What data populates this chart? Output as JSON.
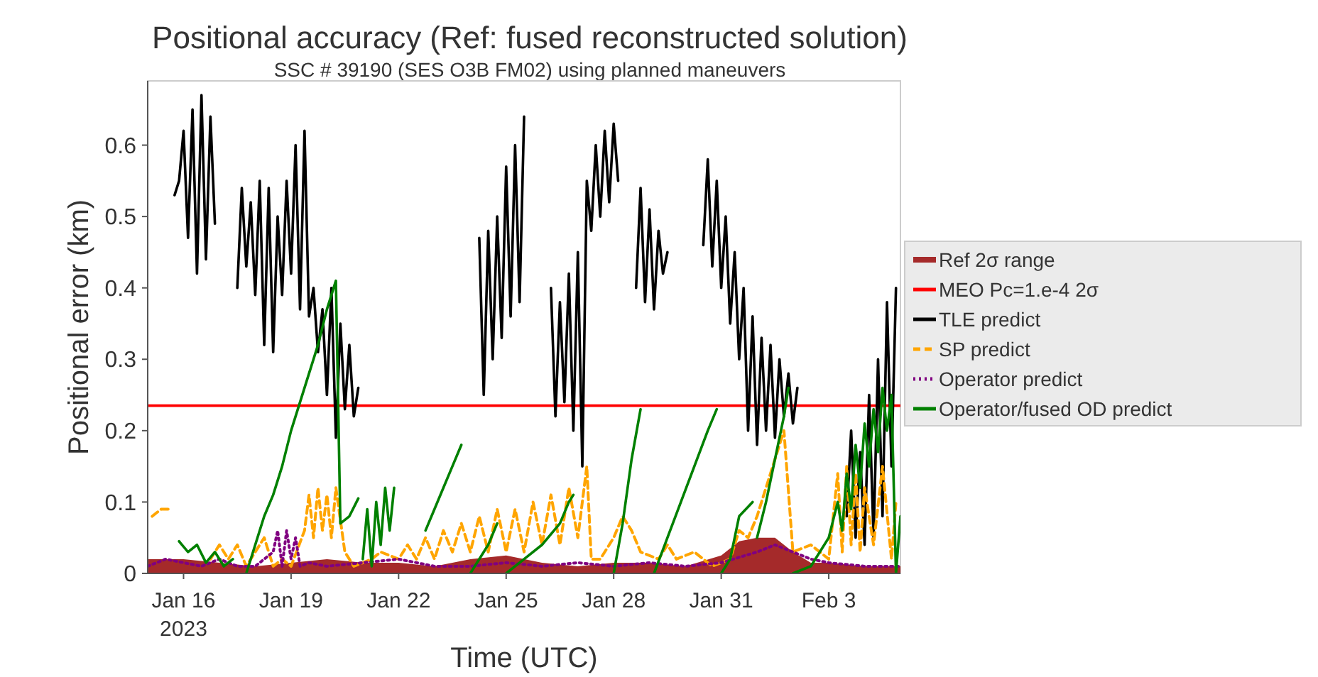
{
  "chart_data": {
    "type": "line",
    "title": "Positional accuracy (Ref: fused reconstructed solution)",
    "subtitle": "SSC # 39190 (SES O3B FM02) using planned maneuvers",
    "xlabel": "Time (UTC)",
    "ylabel": "Positional error (km)",
    "xlim": [
      "2023-01-15",
      "2023-02-05"
    ],
    "xticks": [
      {
        "value": "2023-01-16",
        "label": "Jan 16\n2023"
      },
      {
        "value": "2023-01-19",
        "label": "Jan 19"
      },
      {
        "value": "2023-01-22",
        "label": "Jan 22"
      },
      {
        "value": "2023-01-25",
        "label": "Jan 25"
      },
      {
        "value": "2023-01-28",
        "label": "Jan 28"
      },
      {
        "value": "2023-01-31",
        "label": "Jan 31"
      },
      {
        "value": "2023-02-03",
        "label": "Feb 3"
      }
    ],
    "ylim": [
      0,
      0.69
    ],
    "yticks": [
      0,
      0.1,
      0.2,
      0.3,
      0.4,
      0.5,
      0.6
    ],
    "grid": false,
    "legend": "right",
    "series": [
      {
        "name": "Ref 2σ range",
        "type": "area",
        "color": "#a52a2a",
        "x": [
          "2023-01-15T00:00",
          "2023-01-16T00:00",
          "2023-01-17T00:00",
          "2023-01-18T00:00",
          "2023-01-19T00:00",
          "2023-01-20T00:00",
          "2023-01-21T00:00",
          "2023-01-22T00:00",
          "2023-01-23T00:00",
          "2023-01-24T00:00",
          "2023-01-25T00:00",
          "2023-01-26T00:00",
          "2023-01-27T00:00",
          "2023-01-28T00:00",
          "2023-01-29T00:00",
          "2023-01-30T00:00",
          "2023-01-31T00:00",
          "2023-01-31T12:00",
          "2023-02-01T00:00",
          "2023-02-01T12:00",
          "2023-02-02T00:00",
          "2023-02-02T12:00",
          "2023-02-03T00:00",
          "2023-02-04T00:00",
          "2023-02-05T00:00"
        ],
        "values": [
          0.02,
          0.02,
          0.015,
          0.01,
          0.015,
          0.02,
          0.015,
          0.015,
          0.01,
          0.02,
          0.025,
          0.015,
          0.01,
          0.015,
          0.015,
          0.01,
          0.025,
          0.045,
          0.05,
          0.05,
          0.03,
          0.015,
          0.015,
          0.01,
          0.01
        ]
      },
      {
        "name": "MEO Pc=1.e-4 2σ",
        "color": "#ff0000",
        "x": [
          "2023-01-15T00:00",
          "2023-02-05T00:00"
        ],
        "values": [
          0.235,
          0.235
        ]
      },
      {
        "name": "TLE predict",
        "color": "#000000",
        "x": [
          "2023-01-15T18:00",
          "2023-01-15T21:00",
          "2023-01-16T00:00",
          "2023-01-16T03:00",
          "2023-01-16T06:00",
          "2023-01-16T09:00",
          "2023-01-16T12:00",
          "2023-01-16T15:00",
          "2023-01-16T18:00",
          "2023-01-16T21:00",
          "2023-01-17T03:00",
          "2023-01-17T12:00",
          "2023-01-17T15:00",
          "2023-01-17T18:00",
          "2023-01-17T21:00",
          "2023-01-18T00:00",
          "2023-01-18T03:00",
          "2023-01-18T06:00",
          "2023-01-18T09:00",
          "2023-01-18T12:00",
          "2023-01-18T15:00",
          "2023-01-18T18:00",
          "2023-01-18T21:00",
          "2023-01-19T00:00",
          "2023-01-19T03:00",
          "2023-01-19T06:00",
          "2023-01-19T09:00",
          "2023-01-19T12:00",
          "2023-01-19T15:00",
          "2023-01-19T18:00",
          "2023-01-19T21:00",
          "2023-01-20T00:00",
          "2023-01-20T03:00",
          "2023-01-20T06:00",
          "2023-01-20T09:00",
          "2023-01-20T12:00",
          "2023-01-20T15:00",
          "2023-01-20T18:00",
          "2023-01-20T21:00",
          "2023-01-21T06:00",
          "2023-01-24T06:00",
          "2023-01-24T09:00",
          "2023-01-24T12:00",
          "2023-01-24T15:00",
          "2023-01-24T18:00",
          "2023-01-24T21:00",
          "2023-01-25T00:00",
          "2023-01-25T03:00",
          "2023-01-25T06:00",
          "2023-01-25T09:00",
          "2023-01-25T12:00",
          "2023-01-25T21:00",
          "2023-01-26T06:00",
          "2023-01-26T09:00",
          "2023-01-26T12:00",
          "2023-01-26T15:00",
          "2023-01-26T18:00",
          "2023-01-26T21:00",
          "2023-01-27T00:00",
          "2023-01-27T03:00",
          "2023-01-27T06:00",
          "2023-01-27T09:00",
          "2023-01-27T12:00",
          "2023-01-27T15:00",
          "2023-01-27T18:00",
          "2023-01-27T21:00",
          "2023-01-28T00:00",
          "2023-01-28T03:00",
          "2023-01-28T09:00",
          "2023-01-28T15:00",
          "2023-01-28T18:00",
          "2023-01-28T21:00",
          "2023-01-29T00:00",
          "2023-01-29T03:00",
          "2023-01-29T06:00",
          "2023-01-29T09:00",
          "2023-01-29T12:00",
          "2023-01-29T21:00",
          "2023-01-30T12:00",
          "2023-01-30T15:00",
          "2023-01-30T18:00",
          "2023-01-30T21:00",
          "2023-01-31T00:00",
          "2023-01-31T03:00",
          "2023-01-31T06:00",
          "2023-01-31T09:00",
          "2023-01-31T12:00",
          "2023-01-31T15:00",
          "2023-01-31T18:00",
          "2023-01-31T21:00",
          "2023-02-01T00:00",
          "2023-02-01T03:00",
          "2023-02-01T06:00",
          "2023-02-01T09:00",
          "2023-02-01T12:00",
          "2023-02-01T15:00",
          "2023-02-01T18:00",
          "2023-02-01T21:00",
          "2023-02-02T00:00",
          "2023-02-02T03:00",
          "2023-02-02T12:00",
          "2023-02-03T12:00",
          "2023-02-03T15:00",
          "2023-02-03T18:00",
          "2023-02-03T21:00",
          "2023-02-04T00:00",
          "2023-02-04T03:00",
          "2023-02-04T06:00",
          "2023-02-04T09:00",
          "2023-02-04T12:00",
          "2023-02-04T15:00",
          "2023-02-04T18:00",
          "2023-02-04T21:00"
        ],
        "values": [
          0.53,
          0.55,
          0.62,
          0.47,
          0.65,
          0.42,
          0.67,
          0.44,
          0.64,
          0.49,
          null,
          0.4,
          0.54,
          0.43,
          0.52,
          0.39,
          0.55,
          0.32,
          0.54,
          0.31,
          0.5,
          0.39,
          0.55,
          0.42,
          0.6,
          0.37,
          0.62,
          0.36,
          0.4,
          0.31,
          0.37,
          0.25,
          0.4,
          0.19,
          0.35,
          0.23,
          0.32,
          0.22,
          0.26,
          null,
          0.47,
          0.25,
          0.48,
          0.3,
          0.5,
          0.33,
          0.57,
          0.36,
          0.6,
          0.38,
          0.64,
          null,
          0.4,
          0.22,
          0.38,
          0.24,
          0.42,
          0.2,
          0.45,
          0.15,
          0.55,
          0.48,
          0.6,
          0.5,
          0.62,
          0.52,
          0.63,
          0.55,
          null,
          0.4,
          0.54,
          0.38,
          0.51,
          0.37,
          0.48,
          0.42,
          0.45,
          null,
          0.46,
          0.58,
          0.43,
          0.55,
          0.4,
          0.5,
          0.35,
          0.45,
          0.3,
          0.4,
          0.2,
          0.36,
          0.18,
          0.33,
          0.2,
          0.32,
          0.19,
          0.3,
          0.22,
          0.28,
          0.21,
          0.26,
          null,
          0.08,
          0.2,
          0.05,
          0.17,
          0.04,
          0.25,
          0.05,
          0.3,
          0.08,
          0.38,
          0.15,
          0.4
        ]
      },
      {
        "name": "SP predict",
        "color": "#ffa500",
        "line_style": "dashed",
        "x": [
          "2023-01-15T03:00",
          "2023-01-15T09:00",
          "2023-01-15T15:00",
          "2023-01-15T21:00",
          "2023-01-16T18:00",
          "2023-01-17T00:00",
          "2023-01-17T06:00",
          "2023-01-17T12:00",
          "2023-01-17T18:00",
          "2023-01-18T00:00",
          "2023-01-18T06:00",
          "2023-01-18T12:00",
          "2023-01-18T18:00",
          "2023-01-19T00:00",
          "2023-01-19T09:00",
          "2023-01-19T12:00",
          "2023-01-19T15:00",
          "2023-01-19T18:00",
          "2023-01-19T21:00",
          "2023-01-20T00:00",
          "2023-01-20T03:00",
          "2023-01-20T06:00",
          "2023-01-20T12:00",
          "2023-01-20T18:00",
          "2023-01-21T06:00",
          "2023-01-21T12:00",
          "2023-01-22T00:00",
          "2023-01-22T06:00",
          "2023-01-22T12:00",
          "2023-01-22T18:00",
          "2023-01-23T00:00",
          "2023-01-23T06:00",
          "2023-01-23T12:00",
          "2023-01-23T18:00",
          "2023-01-24T00:00",
          "2023-01-24T06:00",
          "2023-01-24T12:00",
          "2023-01-24T18:00",
          "2023-01-25T00:00",
          "2023-01-25T06:00",
          "2023-01-25T12:00",
          "2023-01-25T18:00",
          "2023-01-26T00:00",
          "2023-01-26T06:00",
          "2023-01-26T12:00",
          "2023-01-26T18:00",
          "2023-01-27T00:00",
          "2023-01-27T06:00",
          "2023-01-27T09:00",
          "2023-01-27T15:00",
          "2023-01-28T00:00",
          "2023-01-28T06:00",
          "2023-01-28T12:00",
          "2023-01-28T18:00",
          "2023-01-29T06:00",
          "2023-01-29T12:00",
          "2023-01-29T18:00",
          "2023-01-30T06:00",
          "2023-01-30T18:00",
          "2023-01-31T06:00",
          "2023-01-31T12:00",
          "2023-01-31T18:00",
          "2023-02-01T00:00",
          "2023-02-01T06:00",
          "2023-02-01T12:00",
          "2023-02-01T18:00",
          "2023-02-02T00:00",
          "2023-02-02T12:00",
          "2023-02-03T00:00",
          "2023-02-03T06:00",
          "2023-02-03T09:00",
          "2023-02-03T12:00",
          "2023-02-03T15:00",
          "2023-02-03T18:00",
          "2023-02-03T21:00",
          "2023-02-04T00:00",
          "2023-02-04T06:00",
          "2023-02-04T12:00",
          "2023-02-04T18:00",
          "2023-02-04T21:00"
        ],
        "values": [
          0.08,
          0.09,
          0.09,
          null,
          0.02,
          0.04,
          0.02,
          0.04,
          0.01,
          0.03,
          0.05,
          0.01,
          0.02,
          0.01,
          0.06,
          0.11,
          0.05,
          0.12,
          0.06,
          0.11,
          0.05,
          0.12,
          0.03,
          0.01,
          0.02,
          0.03,
          0.02,
          0.04,
          0.02,
          0.05,
          0.02,
          0.06,
          0.03,
          0.07,
          0.03,
          0.08,
          0.03,
          0.09,
          0.03,
          0.09,
          0.03,
          0.1,
          0.04,
          0.11,
          0.04,
          0.12,
          0.05,
          0.15,
          0.02,
          0.02,
          0.05,
          0.08,
          0.06,
          0.03,
          0.02,
          0.04,
          0.02,
          0.03,
          0.01,
          0.02,
          0.06,
          0.05,
          0.08,
          0.12,
          0.16,
          0.2,
          0.03,
          0.04,
          0.02,
          0.14,
          0.03,
          0.15,
          0.04,
          0.14,
          0.03,
          0.12,
          0.04,
          0.15,
          0.02,
          0.1
        ]
      },
      {
        "name": "Operator predict",
        "color": "#800080",
        "line_style": "dotted",
        "x": [
          "2023-01-15T00:00",
          "2023-01-15T12:00",
          "2023-01-16T00:00",
          "2023-01-16T12:00",
          "2023-01-17T00:00",
          "2023-01-17T12:00",
          "2023-01-18T00:00",
          "2023-01-18T12:00",
          "2023-01-18T15:00",
          "2023-01-18T18:00",
          "2023-01-18T21:00",
          "2023-01-19T00:00",
          "2023-01-19T03:00",
          "2023-01-19T06:00",
          "2023-01-19T12:00",
          "2023-01-20T00:00",
          "2023-01-21T00:00",
          "2023-01-22T00:00",
          "2023-01-23T00:00",
          "2023-01-24T00:00",
          "2023-01-25T00:00",
          "2023-01-26T00:00",
          "2023-01-27T00:00",
          "2023-01-28T00:00",
          "2023-01-29T00:00",
          "2023-01-30T00:00",
          "2023-01-31T00:00",
          "2023-02-01T00:00",
          "2023-02-01T12:00",
          "2023-02-02T00:00",
          "2023-02-02T12:00",
          "2023-02-03T00:00",
          "2023-02-04T00:00",
          "2023-02-05T00:00"
        ],
        "values": [
          0.01,
          0.02,
          0.015,
          0.01,
          0.02,
          0.01,
          0.01,
          0.03,
          0.06,
          0.01,
          0.06,
          0.02,
          0.05,
          0.01,
          0.015,
          0.01,
          0.015,
          0.02,
          0.01,
          0.01,
          0.015,
          0.01,
          0.015,
          0.01,
          0.015,
          0.01,
          0.015,
          0.03,
          0.04,
          0.03,
          0.02,
          0.015,
          0.01,
          0.01
        ]
      },
      {
        "name": "Operator/fused OD predict",
        "color": "#008000",
        "x": [
          "2023-01-15T21:00",
          "2023-01-16T03:00",
          "2023-01-16T09:00",
          "2023-01-16T15:00",
          "2023-01-16T21:00",
          "2023-01-17T03:00",
          "2023-01-17T09:00",
          "2023-01-17T12:00",
          "2023-01-17T18:00",
          "2023-01-18T00:00",
          "2023-01-18T06:00",
          "2023-01-18T12:00",
          "2023-01-18T18:00",
          "2023-01-19T00:00",
          "2023-01-19T06:00",
          "2023-01-19T12:00",
          "2023-01-19T18:00",
          "2023-01-20T00:00",
          "2023-01-20T06:00",
          "2023-01-20T09:00",
          "2023-01-20T15:00",
          "2023-01-20T21:00",
          "2023-01-20T22:00",
          "2023-01-21T00:00",
          "2023-01-21T03:00",
          "2023-01-21T06:00",
          "2023-01-21T09:00",
          "2023-01-21T12:00",
          "2023-01-21T15:00",
          "2023-01-21T18:00",
          "2023-01-21T21:00",
          "2023-01-22T06:00",
          "2023-01-22T18:00",
          "2023-01-23T00:00",
          "2023-01-23T06:00",
          "2023-01-23T12:00",
          "2023-01-23T18:00",
          "2023-01-23T21:00",
          "2023-01-24T00:00",
          "2023-01-24T12:00",
          "2023-01-24T18:00",
          "2023-01-24T21:00",
          "2023-01-25T00:00",
          "2023-01-25T12:00",
          "2023-01-26T00:00",
          "2023-01-26T12:00",
          "2023-01-26T18:00",
          "2023-01-26T21:00",
          "2023-01-27T06:00",
          "2023-01-28T00:00",
          "2023-01-28T06:00",
          "2023-01-28T12:00",
          "2023-01-28T18:00",
          "2023-01-28T21:00",
          "2023-01-29T03:00",
          "2023-01-29T12:00",
          "2023-01-29T21:00",
          "2023-01-30T06:00",
          "2023-01-30T15:00",
          "2023-01-30T21:00",
          "2023-01-30T22:00",
          "2023-01-31T00:00",
          "2023-01-31T06:00",
          "2023-01-31T12:00",
          "2023-01-31T21:00",
          "2023-01-31T22:00",
          "2023-02-01T00:00",
          "2023-02-01T06:00",
          "2023-02-01T12:00",
          "2023-02-01T18:00",
          "2023-02-01T21:00",
          "2023-02-01T22:00",
          "2023-02-02T00:00",
          "2023-02-02T12:00",
          "2023-02-03T00:00",
          "2023-02-03T06:00",
          "2023-02-03T09:00",
          "2023-02-03T12:00",
          "2023-02-03T15:00",
          "2023-02-03T18:00",
          "2023-02-03T21:00",
          "2023-02-04T00:00",
          "2023-02-04T03:00",
          "2023-02-04T06:00",
          "2023-02-04T09:00",
          "2023-02-04T12:00",
          "2023-02-04T15:00",
          "2023-02-04T18:00",
          "2023-02-04T21:00",
          "2023-02-05T00:00"
        ],
        "values": [
          0.045,
          0.03,
          0.04,
          0.015,
          0.03,
          0.01,
          0.02,
          null,
          0.0,
          0.04,
          0.08,
          0.11,
          0.15,
          0.2,
          0.24,
          0.28,
          0.32,
          0.37,
          0.41,
          0.07,
          0.08,
          0.105,
          null,
          0.02,
          0.09,
          0.01,
          0.1,
          0.04,
          0.12,
          0.06,
          0.12,
          null,
          0.06,
          0.09,
          0.12,
          0.15,
          0.18,
          null,
          0.0,
          0.04,
          0.07,
          null,
          0.0,
          0.02,
          0.04,
          0.07,
          0.1,
          0.11,
          null,
          0.0,
          0.07,
          0.16,
          0.23,
          null,
          0.0,
          0.05,
          0.1,
          0.15,
          0.2,
          0.23,
          null,
          0.0,
          0.02,
          0.08,
          0.1,
          null,
          0.05,
          0.1,
          0.16,
          0.22,
          0.26,
          null,
          0.0,
          0.01,
          0.05,
          0.1,
          0.06,
          0.14,
          0.09,
          0.18,
          0.12,
          0.21,
          0.15,
          0.23,
          0.17,
          0.26,
          0.2,
          0.25,
          0.0,
          0.08
        ]
      }
    ]
  }
}
